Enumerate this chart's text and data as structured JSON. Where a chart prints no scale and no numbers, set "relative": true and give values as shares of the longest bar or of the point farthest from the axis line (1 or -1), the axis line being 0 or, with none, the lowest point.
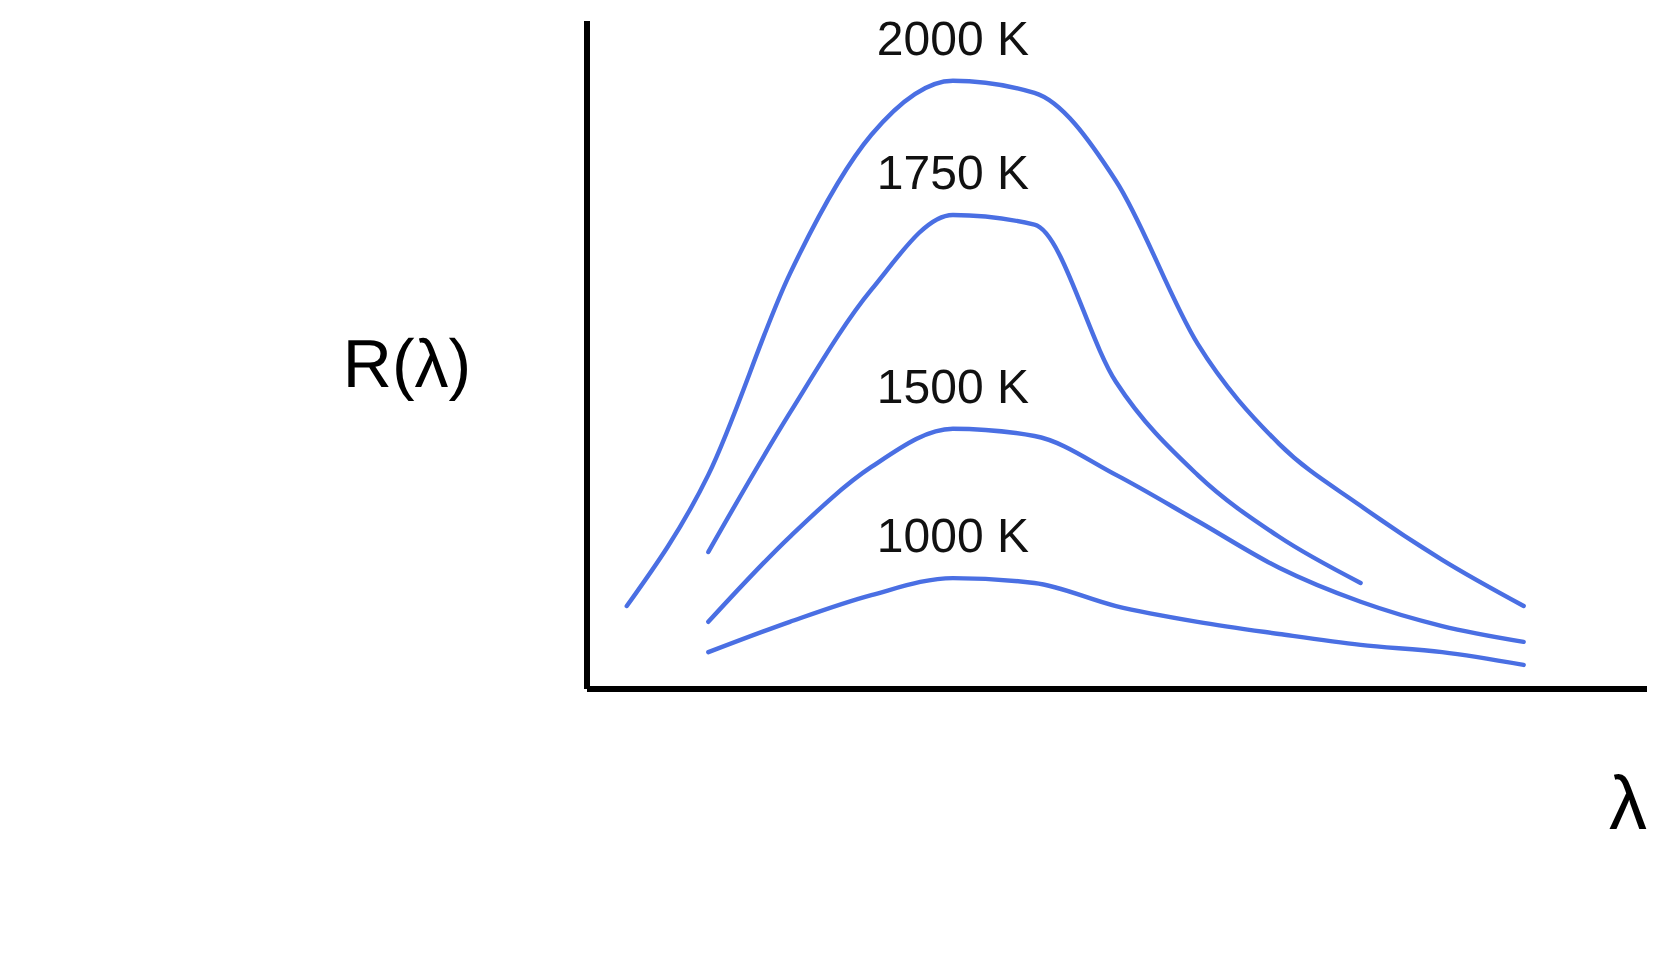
{
  "chart_data": {
    "type": "line",
    "relative": true,
    "xlabel": "λ",
    "ylabel": "R(λ)",
    "legend": false,
    "grid": false,
    "marker": "none",
    "line_style": "solid",
    "categories": [
      null,
      null,
      null,
      null,
      null,
      null,
      null,
      null,
      null,
      null,
      null,
      null,
      null
    ],
    "series": [
      {
        "name": "2000 K",
        "color": "#4a6fe3",
        "values": [
          0.135,
          0.351,
          0.682,
          0.911,
          1.0,
          0.98,
          0.835,
          0.567,
          0.402,
          0.3,
          0.211,
          0.135,
          null
        ]
      },
      {
        "name": "1750 K",
        "color": "#4a6fe3",
        "values": [
          null,
          0.224,
          0.453,
          0.656,
          0.779,
          0.763,
          0.504,
          0.351,
          0.249,
          0.173,
          null,
          null,
          null
        ]
      },
      {
        "name": "1500 K",
        "color": "#4a6fe3",
        "values": [
          null,
          0.109,
          0.249,
          0.364,
          0.427,
          0.415,
          0.351,
          0.275,
          0.198,
          0.142,
          0.102,
          0.076,
          null
        ]
      },
      {
        "name": "1000 K",
        "color": "#4a6fe3",
        "values": [
          null,
          0.059,
          0.109,
          0.153,
          0.181,
          0.173,
          0.135,
          0.109,
          0.089,
          0.071,
          0.059,
          0.038,
          null
        ]
      }
    ]
  }
}
